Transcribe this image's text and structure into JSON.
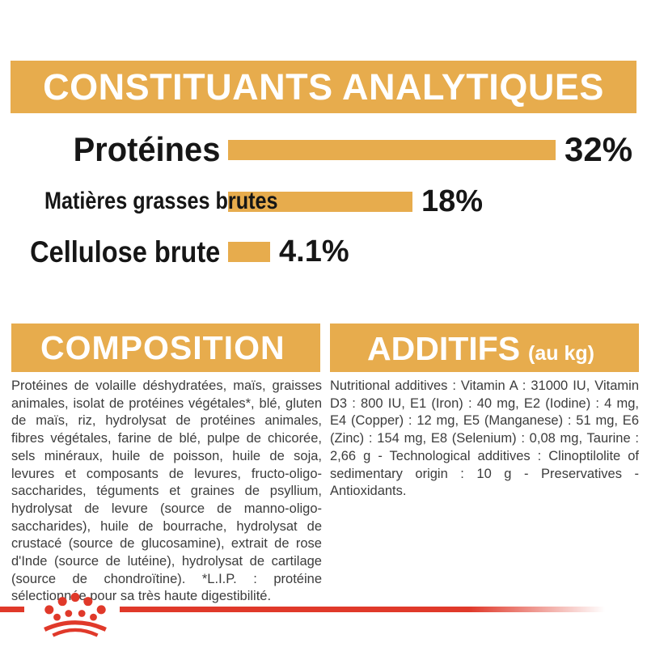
{
  "header": {
    "title": "CONSTITUANTS ANALYTIQUES"
  },
  "chart_data": {
    "type": "bar",
    "orientation": "horizontal",
    "title": "CONSTITUANTS ANALYTIQUES",
    "categories": [
      "Protéines",
      "Matières grasses brutes",
      "Cellulose brute"
    ],
    "values": [
      32,
      18,
      4.1
    ],
    "value_labels": [
      "32%",
      "18%",
      "4.1%"
    ],
    "unit": "%",
    "xlim": [
      0,
      32
    ],
    "grid": false,
    "legend": false,
    "bar_color": "#E7AC4D"
  },
  "composition": {
    "title": "COMPOSITION",
    "body": "Protéines de volaille déshydratées, maïs, graisses animales, isolat de protéines végétales*, blé, gluten de maïs, riz, hydrolysat de protéines animales, fibres végétales, farine de blé, pulpe de chicorée, sels minéraux, huile de poisson, huile de soja, levures et composants de levures, fructo-oligo-saccharides, téguments et graines de psyllium, hydrolysat de levure (source de manno-oligo-saccharides), huile de bourrache, hydrolysat de crustacé (source de glucosamine), extrait de rose d'Inde (source de lutéine), hydrolysat de cartilage (source de chondroïtine). *L.I.P. : protéine sélectionnée pour sa très haute digestibilité."
  },
  "additives": {
    "title": "ADDITIFS",
    "title_suffix": "(au kg)",
    "body": "Nutritional additives : Vitamin A : 31000 IU, Vitamin D3 : 800 IU, E1 (Iron) : 40 mg, E2 (Iodine) : 4 mg, E4 (Copper) : 12 mg, E5 (Manganese) : 51 mg, E6 (Zinc) : 154 mg, E8 (Selenium) : 0,08 mg, Taurine : 2,66 g - Technological additives : Clinoptilolite of sedimentary origin : 10 g - Preservatives - Antioxidants."
  },
  "footer": {
    "logo_icon": "royal-canin-crown"
  },
  "colors": {
    "gold": "#E7AC4D",
    "red": "#E0392A",
    "text": "#3C3C3C",
    "label_text": "#161616",
    "heading_text": "#FFFFFF"
  }
}
